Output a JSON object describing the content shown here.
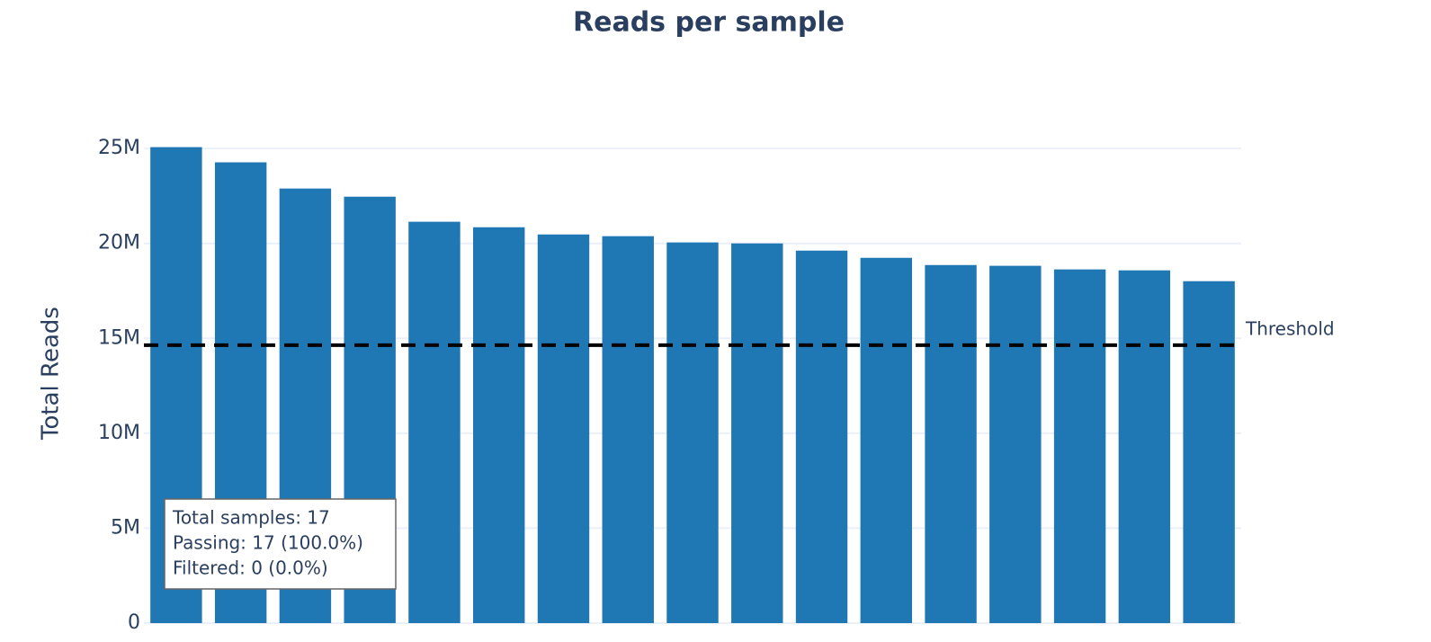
{
  "chart_data": {
    "type": "bar",
    "title": "Reads per sample",
    "y_label": "Total Reads",
    "categories": [
      null,
      null,
      null,
      null,
      null,
      null,
      null,
      null,
      null,
      null,
      null,
      null,
      null,
      null,
      null,
      null,
      null
    ],
    "values": [
      25070000,
      24270000,
      22890000,
      22460000,
      21140000,
      20850000,
      20470000,
      20380000,
      20050000,
      20000000,
      19620000,
      19240000,
      18860000,
      18820000,
      18630000,
      18580000,
      18010000
    ],
    "color": "#1f77b4",
    "ylim": [
      0,
      26000000
    ],
    "yticks": [
      0,
      {
        "value": 5000000,
        "label": "5M"
      },
      {
        "value": 10000000,
        "label": "10M"
      },
      {
        "value": 15000000,
        "label": "15M"
      },
      {
        "value": 20000000,
        "label": "20M"
      },
      {
        "value": 25000000,
        "label": "25M"
      }
    ],
    "grid": true,
    "threshold": {
      "value": 14640000,
      "label": "Threshold"
    },
    "summary": [
      "Total samples: 17",
      "Passing: 17 (100.0%)",
      "Filtered: 0 (0.0%)"
    ]
  }
}
